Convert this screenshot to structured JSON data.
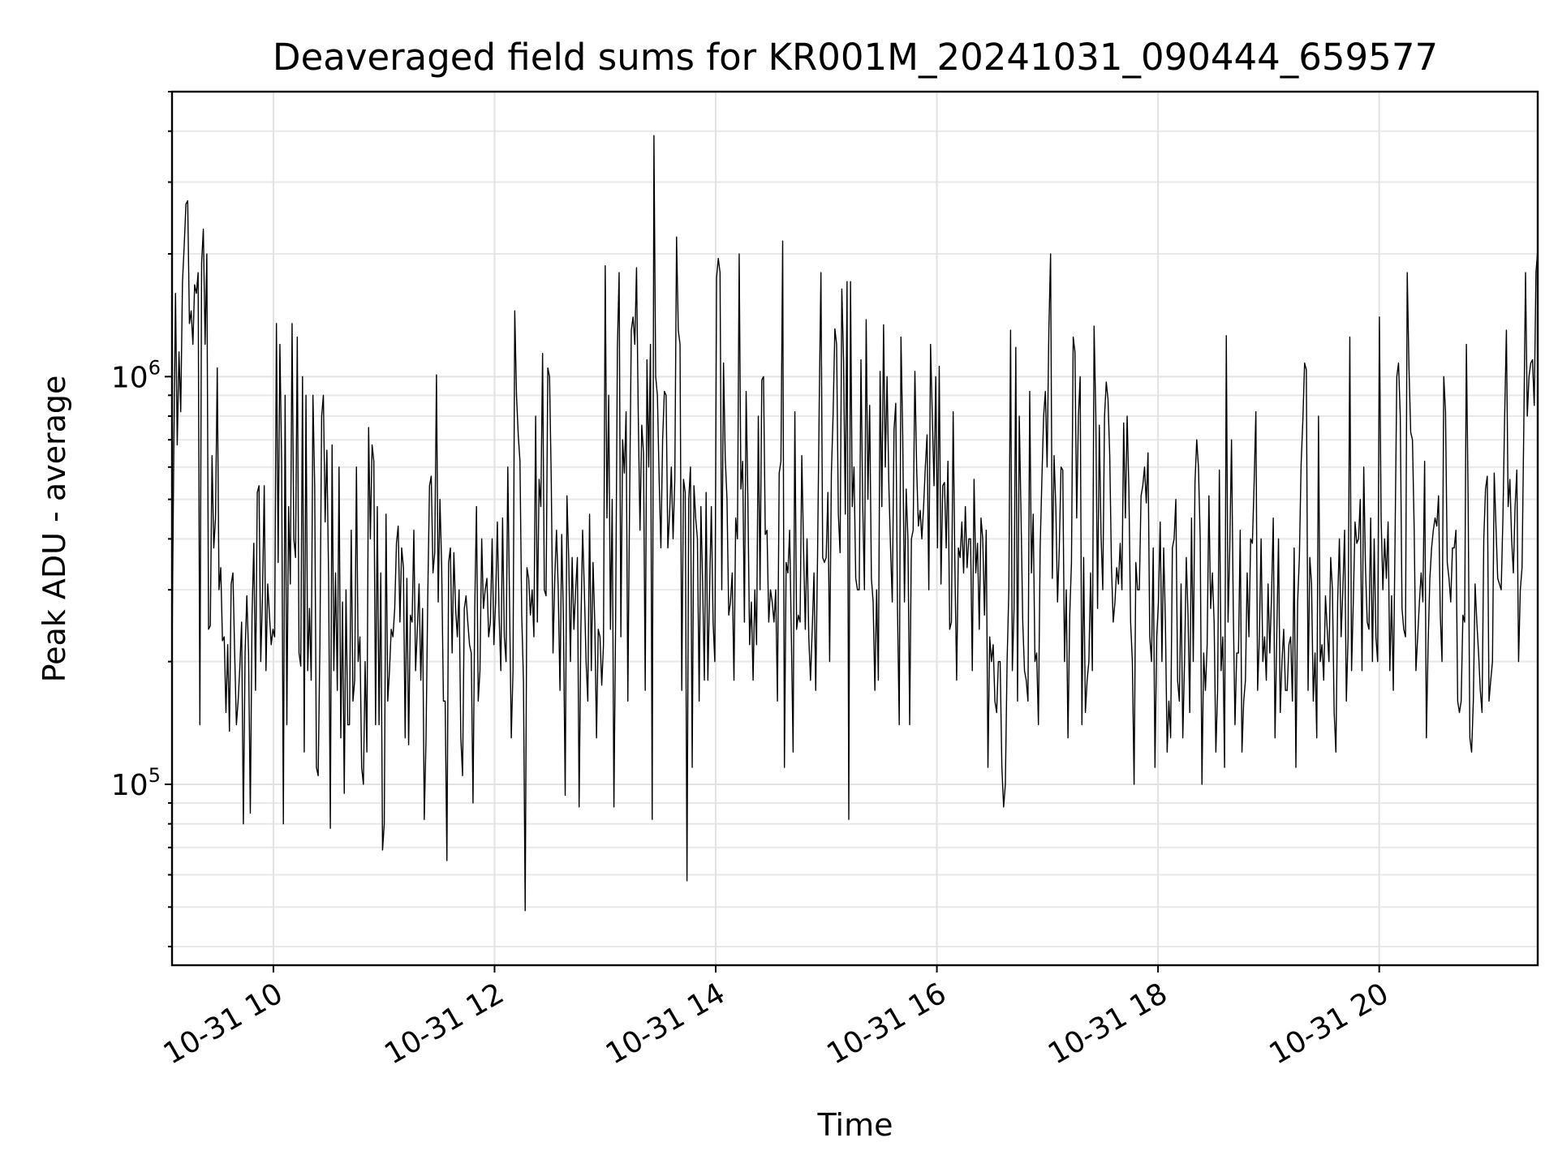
{
  "chart_data": {
    "type": "line",
    "title": "Deaveraged field sums for KR001M_20241031_090444_659577",
    "xlabel": "Time",
    "ylabel": "Peak ADU - average",
    "yscale": "log",
    "grid": true,
    "x_tick_labels": [
      "10-31 10",
      "10-31 12",
      "10-31 14",
      "10-31 16",
      "10-31 18",
      "10-31 20"
    ],
    "y_tick_labels": [
      {
        "base": "10",
        "exp": "5",
        "value": 100000
      },
      {
        "base": "10",
        "exp": "6",
        "value": 1000000
      }
    ],
    "x_range": [
      "2024-10-31 09:05",
      "2024-10-31 21:26"
    ],
    "ylim": [
      36000,
      5000000
    ],
    "series": [
      {
        "color": "#000000",
        "x_start": "2024-10-31 09:05",
        "x_end": "2024-10-31 21:26",
        "values": [
          210000,
          640000,
          1600000,
          680000,
          1150000,
          820000,
          1700000,
          2100000,
          2650000,
          2700000,
          1350000,
          1450000,
          1200000,
          1680000,
          1600000,
          1800000,
          140000,
          1900000,
          2300000,
          1200000,
          2000000,
          240000,
          245000,
          640000,
          380000,
          450000,
          1050000,
          300000,
          340000,
          225000,
          230000,
          150000,
          220000,
          135000,
          310000,
          330000,
          210000,
          140000,
          160000,
          195000,
          250000,
          80000,
          210000,
          290000,
          210000,
          85000,
          260000,
          390000,
          170000,
          520000,
          540000,
          200000,
          290000,
          540000,
          190000,
          310000,
          260000,
          220000,
          240000,
          230000,
          1350000,
          350000,
          1200000,
          620000,
          80000,
          900000,
          140000,
          480000,
          310000,
          1350000,
          400000,
          360000,
          1250000,
          210000,
          195000,
          1000000,
          120000,
          900000,
          190000,
          270000,
          180000,
          900000,
          540000,
          110000,
          105000,
          220000,
          800000,
          900000,
          440000,
          660000,
          320000,
          78000,
          680000,
          190000,
          330000,
          170000,
          600000,
          130000,
          280000,
          95000,
          300000,
          140000,
          140000,
          420000,
          160000,
          180000,
          600000,
          200000,
          230000,
          110000,
          100000,
          200000,
          120000,
          750000,
          400000,
          680000,
          620000,
          140000,
          480000,
          140000,
          330000,
          69000,
          80000,
          460000,
          160000,
          190000,
          240000,
          230000,
          270000,
          390000,
          430000,
          250000,
          380000,
          340000,
          130000,
          320000,
          125000,
          260000,
          250000,
          420000,
          190000,
          240000,
          310000,
          180000,
          270000,
          82000,
          130000,
          290000,
          540000,
          570000,
          330000,
          370000,
          1010000,
          280000,
          500000,
          340000,
          160000,
          160000,
          65000,
          350000,
          380000,
          210000,
          370000,
          270000,
          230000,
          300000,
          130000,
          105000,
          270000,
          290000,
          250000,
          220000,
          210000,
          90000,
          270000,
          480000,
          160000,
          190000,
          400000,
          270000,
          300000,
          320000,
          230000,
          250000,
          400000,
          220000,
          280000,
          440000,
          260000,
          190000,
          450000,
          230000,
          200000,
          600000,
          280000,
          130000,
          190000,
          1450000,
          900000,
          720000,
          620000,
          260000,
          180000,
          49000,
          340000,
          320000,
          260000,
          300000,
          230000,
          800000,
          250000,
          560000,
          480000,
          1140000,
          300000,
          290000,
          1050000,
          1000000,
          550000,
          210000,
          320000,
          420000,
          300000,
          170000,
          410000,
          250000,
          94000,
          510000,
          360000,
          200000,
          360000,
          240000,
          300000,
          360000,
          88000,
          240000,
          420000,
          300000,
          200000,
          160000,
          460000,
          190000,
          350000,
          250000,
          130000,
          240000,
          230000,
          175000,
          220000,
          1870000,
          450000,
          900000,
          240000,
          500000,
          88000,
          260000,
          1180000,
          1800000,
          230000,
          700000,
          580000,
          820000,
          160000,
          490000,
          1300000,
          1400000,
          1200000,
          1850000,
          800000,
          420000,
          760000,
          650000,
          170000,
          1100000,
          600000,
          1200000,
          82000,
          3900000,
          1000000,
          900000,
          560000,
          380000,
          700000,
          920000,
          900000,
          380000,
          460000,
          600000,
          400000,
          560000,
          2200000,
          1300000,
          1200000,
          170000,
          560000,
          520000,
          58000,
          500000,
          600000,
          110000,
          540000,
          450000,
          400000,
          160000,
          480000,
          310000,
          180000,
          520000,
          180000,
          300000,
          480000,
          250000,
          200000,
          1750000,
          1950000,
          1800000,
          300000,
          1080000,
          630000,
          500000,
          260000,
          280000,
          330000,
          180000,
          450000,
          400000,
          2000000,
          530000,
          620000,
          250000,
          920000,
          500000,
          220000,
          280000,
          180000,
          300000,
          220000,
          800000,
          300000,
          980000,
          1000000,
          410000,
          420000,
          250000,
          300000,
          280000,
          250000,
          300000,
          160000,
          580000,
          620000,
          2150000,
          110000,
          350000,
          330000,
          420000,
          230000,
          120000,
          820000,
          240000,
          260000,
          250000,
          640000,
          380000,
          240000,
          400000,
          230000,
          180000,
          240000,
          330000,
          170000,
          350000,
          850000,
          1800000,
          360000,
          350000,
          360000,
          520000,
          200000,
          580000,
          810000,
          1310000,
          1200000,
          460000,
          370000,
          1640000,
          1100000,
          460000,
          1710000,
          82000,
          1710000,
          480000,
          600000,
          320000,
          300000,
          300000,
          1100000,
          490000,
          300000,
          1380000,
          500000,
          850000,
          320000,
          280000,
          170000,
          300000,
          180000,
          1030000,
          480000,
          1340000,
          600000,
          1000000,
          550000,
          380000,
          280000,
          740000,
          860000,
          270000,
          140000,
          1250000,
          720000,
          280000,
          530000,
          400000,
          140000,
          400000,
          420000,
          1030000,
          600000,
          430000,
          470000,
          400000,
          480000,
          600000,
          720000,
          300000,
          1200000,
          800000,
          540000,
          1000000,
          380000,
          1060000,
          310000,
          540000,
          550000,
          380000,
          620000,
          240000,
          250000,
          820000,
          340000,
          180000,
          380000,
          360000,
          440000,
          330000,
          480000,
          340000,
          400000,
          400000,
          190000,
          560000,
          330000,
          390000,
          240000,
          450000,
          400000,
          260000,
          420000,
          110000,
          230000,
          200000,
          220000,
          160000,
          150000,
          200000,
          200000,
          110000,
          88000,
          100000,
          200000,
          300000,
          1300000,
          190000,
          270000,
          1180000,
          160000,
          800000,
          460000,
          250000,
          190000,
          180000,
          160000,
          920000,
          330000,
          460000,
          200000,
          210000,
          140000,
          380000,
          560000,
          800000,
          920000,
          600000,
          1300000,
          2000000,
          320000,
          640000,
          480000,
          280000,
          380000,
          600000,
          590000,
          200000,
          300000,
          130000,
          260000,
          350000,
          1250000,
          1150000,
          450000,
          800000,
          1000000,
          140000,
          360000,
          150000,
          180000,
          200000,
          330000,
          190000,
          1330000,
          800000,
          270000,
          760000,
          410000,
          300000,
          800000,
          970000,
          880000,
          640000,
          340000,
          250000,
          280000,
          340000,
          310000,
          390000,
          300000,
          770000,
          450000,
          800000,
          530000,
          250000,
          200000,
          100000,
          350000,
          300000,
          300000,
          510000,
          540000,
          600000,
          490000,
          650000,
          230000,
          200000,
          380000,
          110000,
          230000,
          280000,
          440000,
          200000,
          380000,
          250000,
          120000,
          160000,
          130000,
          380000,
          400000,
          500000,
          180000,
          160000,
          310000,
          130000,
          200000,
          360000,
          260000,
          150000,
          450000,
          200000,
          550000,
          700000,
          600000,
          400000,
          100000,
          210000,
          170000,
          220000,
          510000,
          270000,
          330000,
          250000,
          120000,
          170000,
          590000,
          190000,
          230000,
          110000,
          1260000,
          250000,
          380000,
          700000,
          270000,
          140000,
          210000,
          210000,
          420000,
          120000,
          160000,
          180000,
          330000,
          230000,
          400000,
          390000,
          550000,
          820000,
          170000,
          230000,
          400000,
          200000,
          230000,
          180000,
          310000,
          210000,
          290000,
          450000,
          130000,
          230000,
          400000,
          150000,
          200000,
          240000,
          170000,
          170000,
          220000,
          230000,
          160000,
          380000,
          110000,
          280000,
          360000,
          610000,
          780000,
          1080000,
          1040000,
          170000,
          360000,
          310000,
          160000,
          210000,
          130000,
          800000,
          200000,
          220000,
          180000,
          290000,
          240000,
          200000,
          360000,
          300000,
          150000,
          120000,
          280000,
          400000,
          230000,
          300000,
          420000,
          160000,
          230000,
          1250000,
          190000,
          280000,
          440000,
          390000,
          400000,
          500000,
          190000,
          600000,
          340000,
          250000,
          240000,
          450000,
          200000,
          400000,
          230000,
          200000,
          1400000,
          450000,
          300000,
          400000,
          320000,
          440000,
          190000,
          290000,
          170000,
          400000,
          1000000,
          1080000,
          800000,
          270000,
          240000,
          230000,
          1800000,
          1050000,
          730000,
          700000,
          420000,
          190000,
          230000,
          280000,
          330000,
          280000,
          620000,
          130000,
          220000,
          320000,
          380000,
          420000,
          450000,
          430000,
          510000,
          260000,
          200000,
          1000000,
          820000,
          350000,
          320000,
          280000,
          380000,
          380000,
          420000,
          160000,
          150000,
          160000,
          260000,
          250000,
          1200000,
          500000,
          130000,
          120000,
          160000,
          310000,
          250000,
          210000,
          170000,
          150000,
          400000,
          530000,
          570000,
          160000,
          180000,
          200000,
          580000,
          430000,
          320000,
          310000,
          300000,
          450000,
          800000,
          1300000,
          480000,
          560000,
          400000,
          330000,
          480000,
          590000,
          200000,
          300000,
          340000,
          750000,
          1800000,
          800000,
          1000000,
          1080000,
          1100000,
          850000,
          1800000,
          2050000
        ]
      }
    ]
  }
}
